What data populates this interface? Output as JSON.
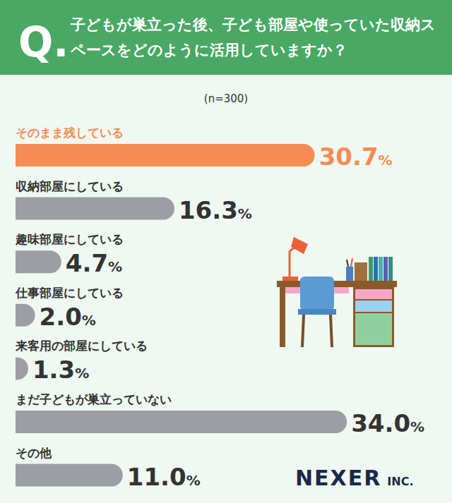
{
  "chart_data": {
    "type": "bar",
    "orientation": "horizontal",
    "title": "子どもが巣立った後、子ども部屋や使っていた収納スペースをどのように活用していますか？",
    "subtitle": "(n=300)",
    "annotations": [
      "Q.",
      "NEXER INC."
    ],
    "categories": [
      "そのまま残している",
      "収納部屋にしている",
      "趣味部屋にしている",
      "仕事部屋にしている",
      "来客用の部屋にしている",
      "まだ子どもが巣立っていない",
      "その他"
    ],
    "values": [
      30.7,
      16.3,
      4.7,
      2.0,
      1.3,
      34.0,
      11.0
    ],
    "value_labels": [
      "30.7%",
      "16.3%",
      "4.7%",
      "2.0%",
      "1.3%",
      "34.0%",
      "11.0%"
    ],
    "colors": [
      "#f68b55",
      "#9d9ea3",
      "#9d9ea3",
      "#9d9ea3",
      "#9d9ea3",
      "#9d9ea3",
      "#9d9ea3"
    ],
    "xlim": [
      0,
      40
    ],
    "data_labels": true,
    "tick_labels": false,
    "grid": false
  }
}
